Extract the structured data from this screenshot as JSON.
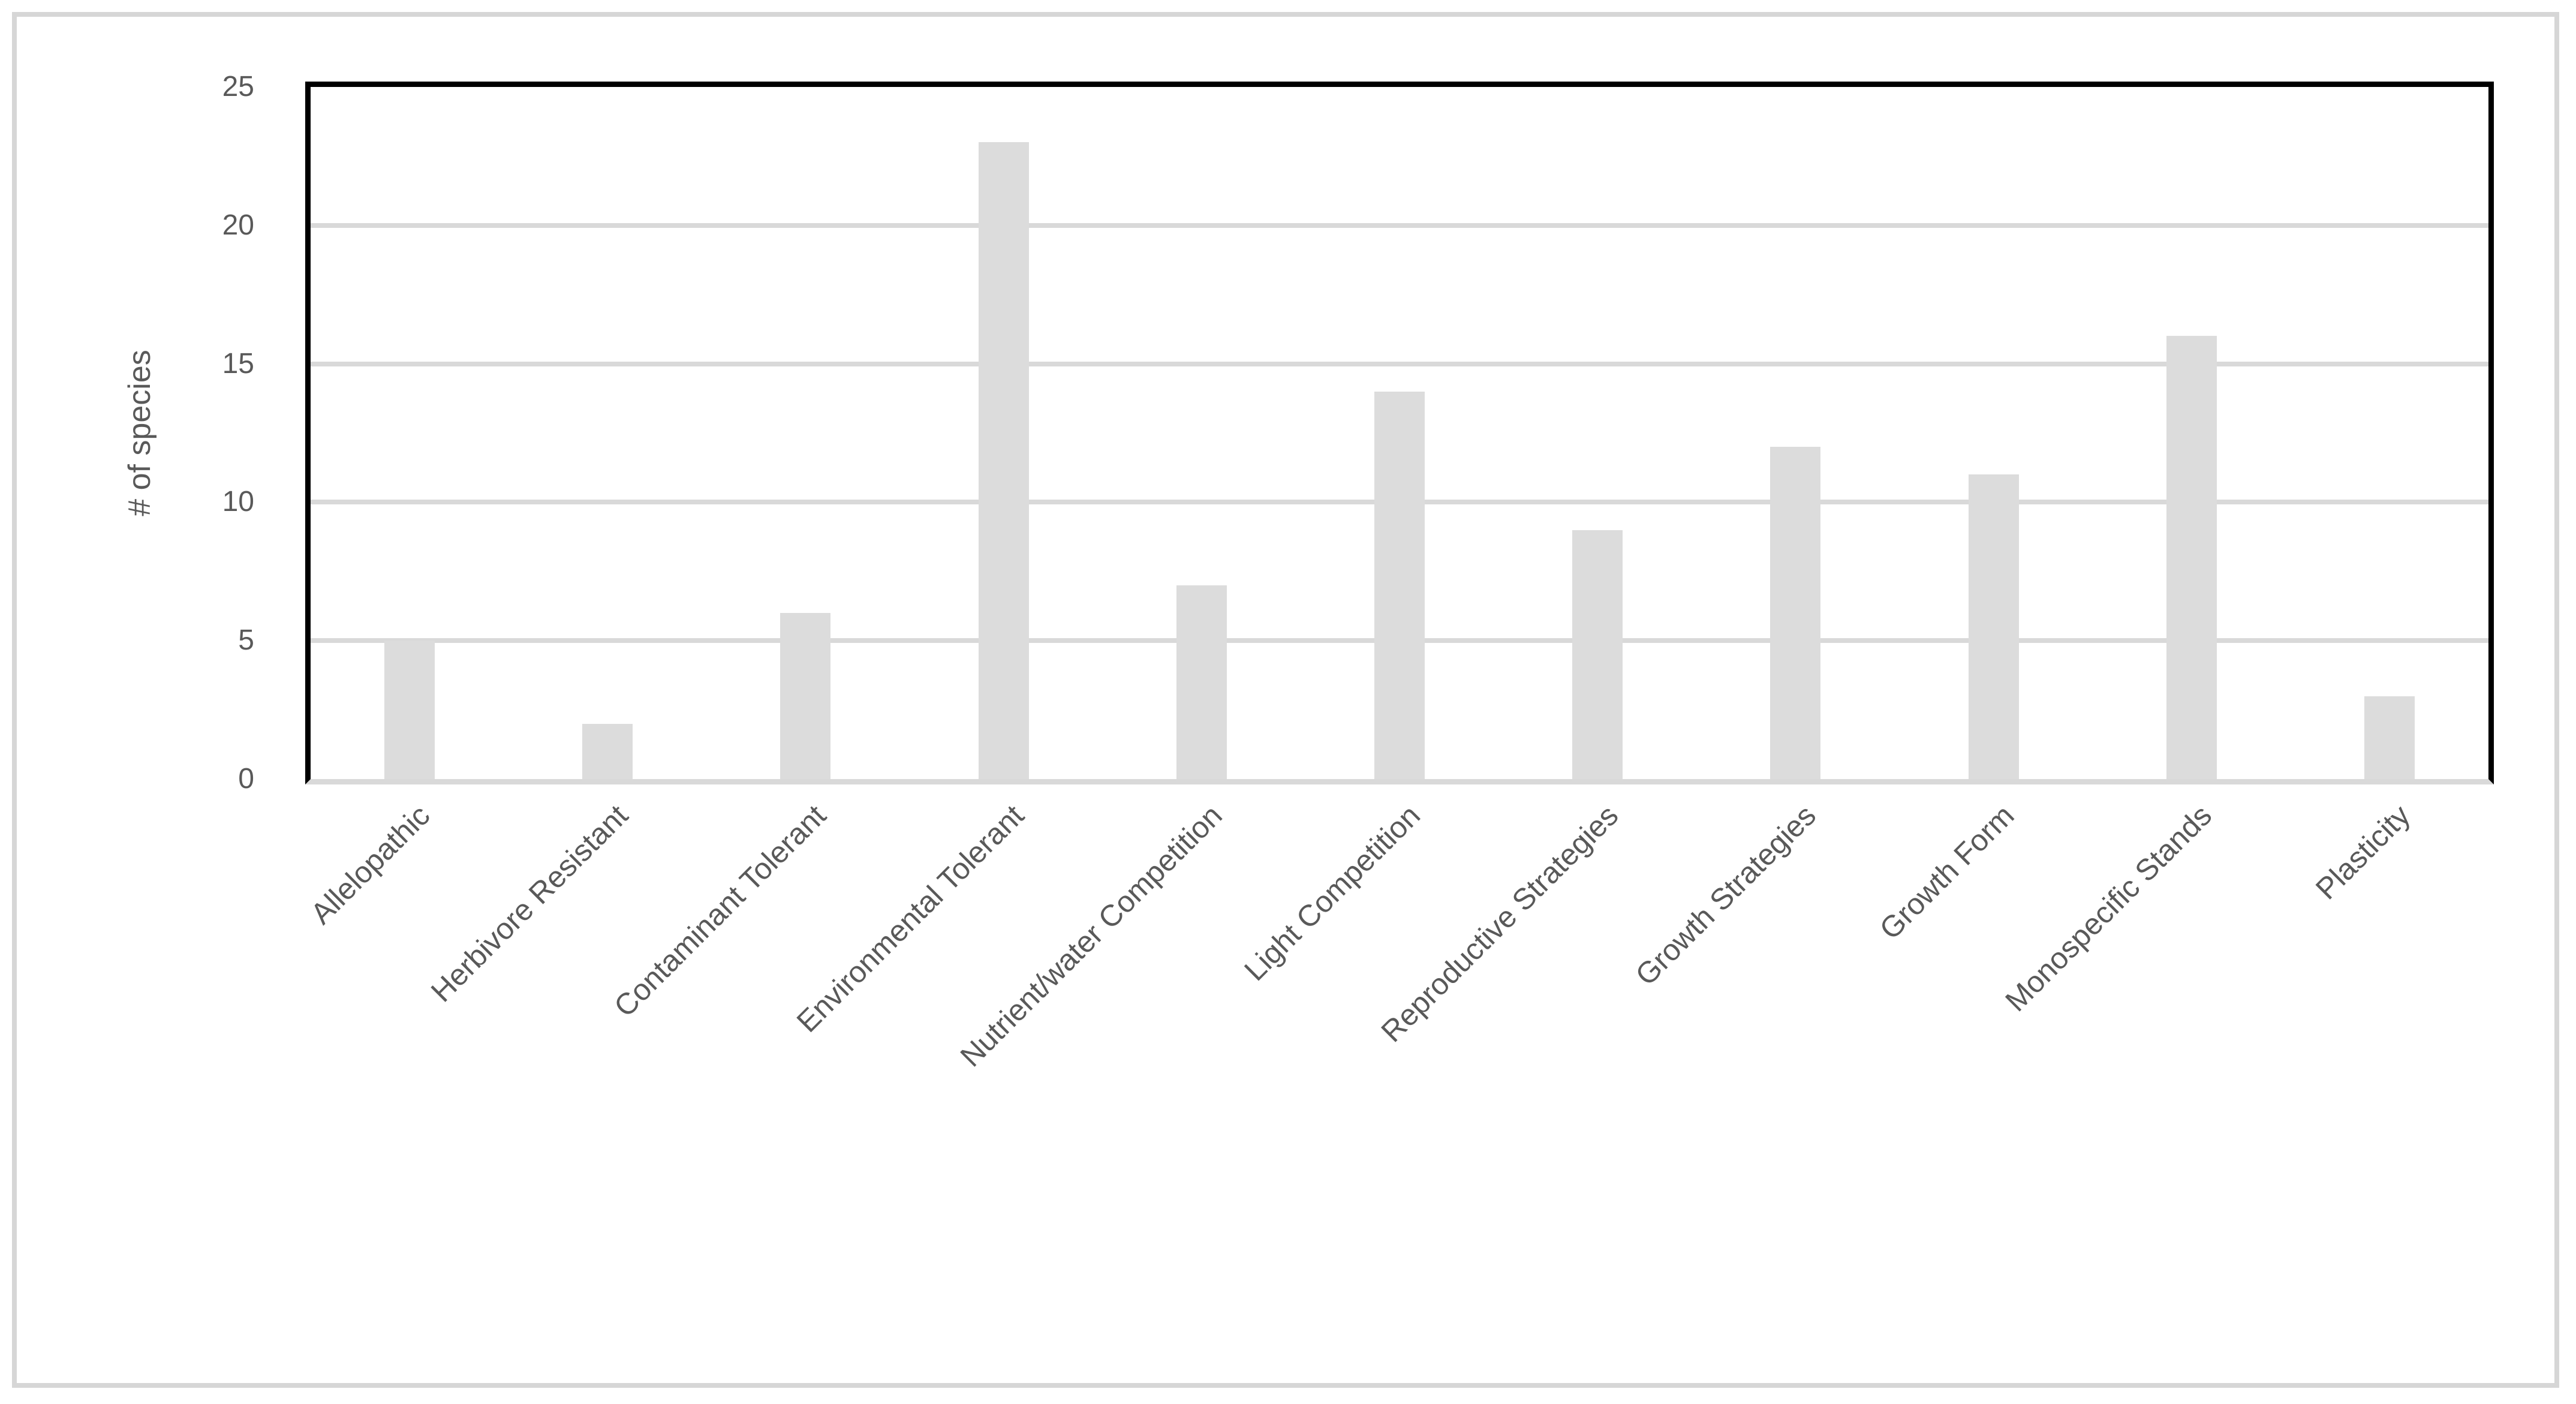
{
  "chart_data": {
    "type": "bar",
    "title": "",
    "categories": [
      "Allelopathic",
      "Herbivore Resistant",
      "Contaminant Tolerant",
      "Environmental Tolerant",
      "Nutrient/water Competition",
      "Light Competition",
      "Reproductive Strategies",
      "Growth Strategies",
      "Growth Form",
      "Monospecific Stands",
      "Plasticity"
    ],
    "values": [
      5,
      2,
      6,
      23,
      7,
      14,
      9,
      12,
      11,
      16,
      3
    ],
    "xlabel": "",
    "ylabel": "# of species",
    "ylim": [
      0,
      25
    ],
    "yticks": [
      0,
      5,
      10,
      15,
      20,
      25
    ],
    "gridline_values": [
      5,
      10,
      15,
      20
    ],
    "grid": "horizontal",
    "legend": "none",
    "colors": {
      "bar_fill": "#dcdcdc",
      "gridline": "#d9d9d9",
      "baseline": "#d9d9d9",
      "plot_border": "#000000",
      "figure_border": "#d6d6d6",
      "axis_text": "#595959",
      "background": "#ffffff"
    }
  }
}
